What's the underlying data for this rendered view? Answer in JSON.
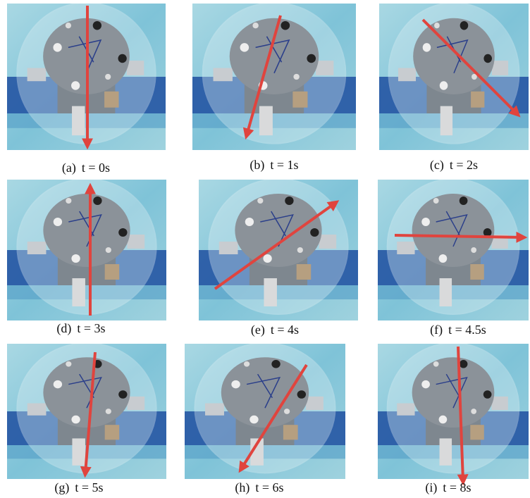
{
  "panels": [
    {
      "label": "(a)",
      "time": "t = 0s"
    },
    {
      "label": "(b)",
      "time": "t = 1s"
    },
    {
      "label": "(c)",
      "time": "t = 2s"
    },
    {
      "label": "(d)",
      "time": "t = 3s"
    },
    {
      "label": "(e)",
      "time": "t = 4s"
    },
    {
      "label": "(f)",
      "time": "t = 4.5s"
    },
    {
      "label": "(g)",
      "time": "t = 5s"
    },
    {
      "label": "(h)",
      "time": "t = 6s"
    },
    {
      "label": "(i)",
      "time": "t = 8s"
    }
  ]
}
